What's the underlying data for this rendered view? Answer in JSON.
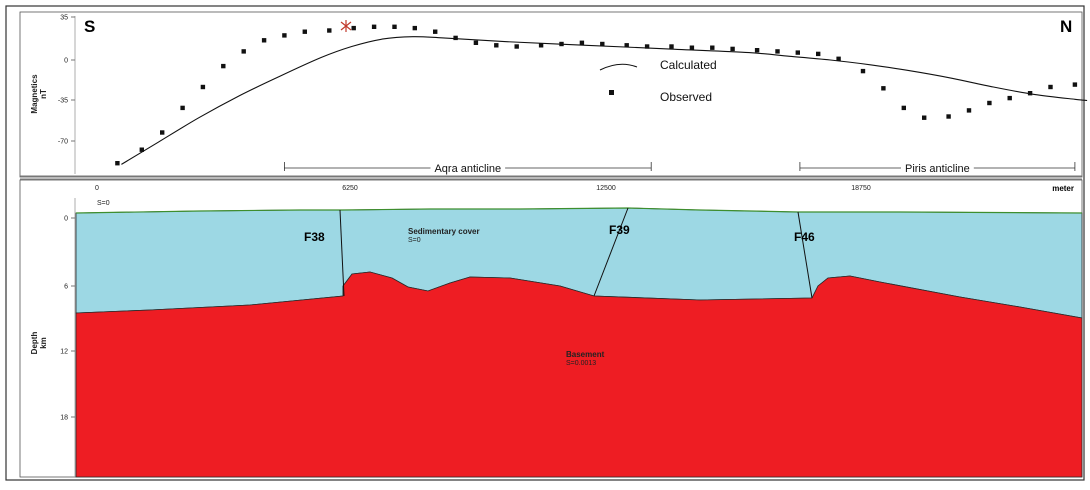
{
  "top_panel": {
    "south_label": "S",
    "north_label": "N",
    "y_axis_title": "Magnetics",
    "y_axis_unit": "nT",
    "y_ticks": [
      "35",
      "0",
      "-35",
      "-70"
    ],
    "legend": {
      "calculated": "Calculated",
      "observed": "Observed"
    },
    "structures": [
      {
        "name": "Aqra anticline",
        "x_from_m": 4600,
        "x_to_m": 13600
      },
      {
        "name": "Piris anticline",
        "x_from_m": 17250,
        "x_to_m": 24000
      }
    ]
  },
  "bottom_panel": {
    "y_axis_title": "Depth",
    "y_axis_unit": "km",
    "x_unit": "meter",
    "x_ticks": [
      "0",
      "6250",
      "12500",
      "18750"
    ],
    "y_ticks": [
      "0",
      "6",
      "12",
      "18"
    ],
    "origin_susceptibility": "S=0",
    "faults": [
      "F38",
      "F39",
      "F46"
    ],
    "bodies": {
      "sedimentary": {
        "name": "Sedimentary cover",
        "susceptibility": "S=0",
        "color": "#9dd8e4"
      },
      "basement": {
        "name": "Basement",
        "susceptibility": "S=0.0013",
        "color": "#ee1d23"
      }
    }
  },
  "chart_data": {
    "type": "line",
    "title": "",
    "xlabel": "meter",
    "ylabel": "Magnetics nT",
    "xlim": [
      0,
      25000
    ],
    "ylim": [
      -85,
      35
    ],
    "grid": false,
    "legend_placement": "center-right",
    "series": [
      {
        "name": "Calculated",
        "x": [
          600,
          1500,
          2500,
          3500,
          4500,
          5500,
          6250,
          7000,
          7750,
          8500,
          10000,
          12000,
          14000,
          16000,
          17000,
          18000,
          19000,
          20000,
          21000,
          22000,
          23000,
          24000,
          24300
        ],
        "y": [
          -85,
          -67,
          -47,
          -29,
          -13,
          2,
          11,
          17,
          19,
          18,
          15,
          12,
          9,
          6,
          3,
          0,
          -4,
          -9,
          -15,
          -22,
          -28,
          -32,
          -33
        ]
      },
      {
        "name": "Observed",
        "x": [
          500,
          1100,
          1600,
          2100,
          2600,
          3100,
          3600,
          4100,
          4600,
          5100,
          5700,
          6300,
          6800,
          7300,
          7800,
          8300,
          8800,
          9300,
          9800,
          10300,
          10900,
          11400,
          11900,
          12400,
          13000,
          13500,
          14100,
          14600,
          15100,
          15600,
          16200,
          16700,
          17200,
          17700,
          18200,
          18800,
          19300,
          19800,
          20300,
          20900,
          21400,
          21900,
          22400,
          22900,
          23400,
          24000
        ],
        "y": [
          -84,
          -73,
          -59,
          -39,
          -22,
          -5,
          7,
          16,
          20,
          23,
          24,
          26,
          27,
          27,
          26,
          23,
          18,
          14,
          12,
          11,
          12,
          13,
          14,
          13,
          12,
          11,
          11,
          10,
          10,
          9,
          8,
          7,
          6,
          5,
          1,
          -9,
          -23,
          -39,
          -47,
          -46,
          -41,
          -35,
          -31,
          -27,
          -22,
          -20
        ]
      }
    ]
  }
}
